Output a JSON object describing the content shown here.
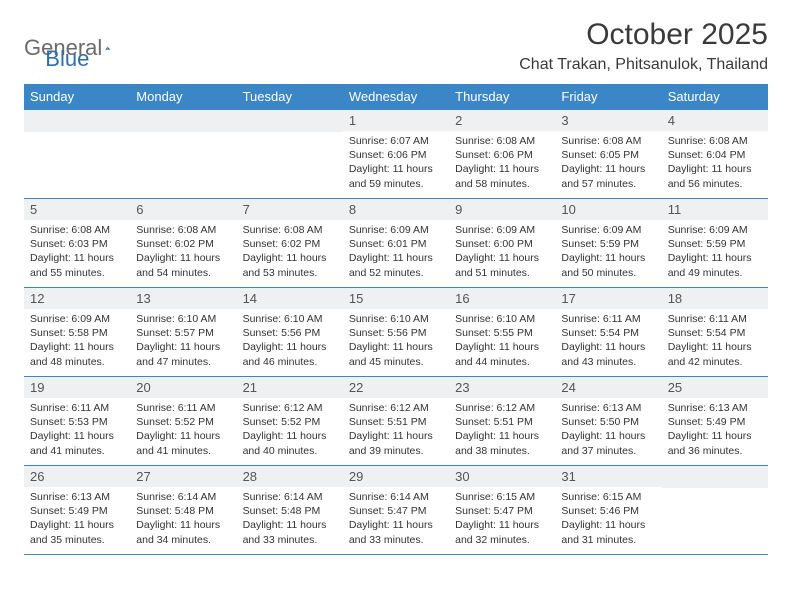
{
  "logo": {
    "general": "General",
    "blue": "Blue"
  },
  "title": "October 2025",
  "location": "Chat Trakan, Phitsanulok, Thailand",
  "colors": {
    "header_bg": "#3b86c7",
    "header_text": "#ffffff",
    "daynum_bg": "#eef0f2",
    "border": "#3b86c7",
    "logo_gray": "#6b6b6b",
    "logo_blue": "#2f6fa8"
  },
  "weekdays": [
    "Sunday",
    "Monday",
    "Tuesday",
    "Wednesday",
    "Thursday",
    "Friday",
    "Saturday"
  ],
  "weeks": [
    [
      {
        "n": "",
        "sr": "",
        "ss": "",
        "dl": ""
      },
      {
        "n": "",
        "sr": "",
        "ss": "",
        "dl": ""
      },
      {
        "n": "",
        "sr": "",
        "ss": "",
        "dl": ""
      },
      {
        "n": "1",
        "sr": "Sunrise: 6:07 AM",
        "ss": "Sunset: 6:06 PM",
        "dl": "Daylight: 11 hours and 59 minutes."
      },
      {
        "n": "2",
        "sr": "Sunrise: 6:08 AM",
        "ss": "Sunset: 6:06 PM",
        "dl": "Daylight: 11 hours and 58 minutes."
      },
      {
        "n": "3",
        "sr": "Sunrise: 6:08 AM",
        "ss": "Sunset: 6:05 PM",
        "dl": "Daylight: 11 hours and 57 minutes."
      },
      {
        "n": "4",
        "sr": "Sunrise: 6:08 AM",
        "ss": "Sunset: 6:04 PM",
        "dl": "Daylight: 11 hours and 56 minutes."
      }
    ],
    [
      {
        "n": "5",
        "sr": "Sunrise: 6:08 AM",
        "ss": "Sunset: 6:03 PM",
        "dl": "Daylight: 11 hours and 55 minutes."
      },
      {
        "n": "6",
        "sr": "Sunrise: 6:08 AM",
        "ss": "Sunset: 6:02 PM",
        "dl": "Daylight: 11 hours and 54 minutes."
      },
      {
        "n": "7",
        "sr": "Sunrise: 6:08 AM",
        "ss": "Sunset: 6:02 PM",
        "dl": "Daylight: 11 hours and 53 minutes."
      },
      {
        "n": "8",
        "sr": "Sunrise: 6:09 AM",
        "ss": "Sunset: 6:01 PM",
        "dl": "Daylight: 11 hours and 52 minutes."
      },
      {
        "n": "9",
        "sr": "Sunrise: 6:09 AM",
        "ss": "Sunset: 6:00 PM",
        "dl": "Daylight: 11 hours and 51 minutes."
      },
      {
        "n": "10",
        "sr": "Sunrise: 6:09 AM",
        "ss": "Sunset: 5:59 PM",
        "dl": "Daylight: 11 hours and 50 minutes."
      },
      {
        "n": "11",
        "sr": "Sunrise: 6:09 AM",
        "ss": "Sunset: 5:59 PM",
        "dl": "Daylight: 11 hours and 49 minutes."
      }
    ],
    [
      {
        "n": "12",
        "sr": "Sunrise: 6:09 AM",
        "ss": "Sunset: 5:58 PM",
        "dl": "Daylight: 11 hours and 48 minutes."
      },
      {
        "n": "13",
        "sr": "Sunrise: 6:10 AM",
        "ss": "Sunset: 5:57 PM",
        "dl": "Daylight: 11 hours and 47 minutes."
      },
      {
        "n": "14",
        "sr": "Sunrise: 6:10 AM",
        "ss": "Sunset: 5:56 PM",
        "dl": "Daylight: 11 hours and 46 minutes."
      },
      {
        "n": "15",
        "sr": "Sunrise: 6:10 AM",
        "ss": "Sunset: 5:56 PM",
        "dl": "Daylight: 11 hours and 45 minutes."
      },
      {
        "n": "16",
        "sr": "Sunrise: 6:10 AM",
        "ss": "Sunset: 5:55 PM",
        "dl": "Daylight: 11 hours and 44 minutes."
      },
      {
        "n": "17",
        "sr": "Sunrise: 6:11 AM",
        "ss": "Sunset: 5:54 PM",
        "dl": "Daylight: 11 hours and 43 minutes."
      },
      {
        "n": "18",
        "sr": "Sunrise: 6:11 AM",
        "ss": "Sunset: 5:54 PM",
        "dl": "Daylight: 11 hours and 42 minutes."
      }
    ],
    [
      {
        "n": "19",
        "sr": "Sunrise: 6:11 AM",
        "ss": "Sunset: 5:53 PM",
        "dl": "Daylight: 11 hours and 41 minutes."
      },
      {
        "n": "20",
        "sr": "Sunrise: 6:11 AM",
        "ss": "Sunset: 5:52 PM",
        "dl": "Daylight: 11 hours and 41 minutes."
      },
      {
        "n": "21",
        "sr": "Sunrise: 6:12 AM",
        "ss": "Sunset: 5:52 PM",
        "dl": "Daylight: 11 hours and 40 minutes."
      },
      {
        "n": "22",
        "sr": "Sunrise: 6:12 AM",
        "ss": "Sunset: 5:51 PM",
        "dl": "Daylight: 11 hours and 39 minutes."
      },
      {
        "n": "23",
        "sr": "Sunrise: 6:12 AM",
        "ss": "Sunset: 5:51 PM",
        "dl": "Daylight: 11 hours and 38 minutes."
      },
      {
        "n": "24",
        "sr": "Sunrise: 6:13 AM",
        "ss": "Sunset: 5:50 PM",
        "dl": "Daylight: 11 hours and 37 minutes."
      },
      {
        "n": "25",
        "sr": "Sunrise: 6:13 AM",
        "ss": "Sunset: 5:49 PM",
        "dl": "Daylight: 11 hours and 36 minutes."
      }
    ],
    [
      {
        "n": "26",
        "sr": "Sunrise: 6:13 AM",
        "ss": "Sunset: 5:49 PM",
        "dl": "Daylight: 11 hours and 35 minutes."
      },
      {
        "n": "27",
        "sr": "Sunrise: 6:14 AM",
        "ss": "Sunset: 5:48 PM",
        "dl": "Daylight: 11 hours and 34 minutes."
      },
      {
        "n": "28",
        "sr": "Sunrise: 6:14 AM",
        "ss": "Sunset: 5:48 PM",
        "dl": "Daylight: 11 hours and 33 minutes."
      },
      {
        "n": "29",
        "sr": "Sunrise: 6:14 AM",
        "ss": "Sunset: 5:47 PM",
        "dl": "Daylight: 11 hours and 33 minutes."
      },
      {
        "n": "30",
        "sr": "Sunrise: 6:15 AM",
        "ss": "Sunset: 5:47 PM",
        "dl": "Daylight: 11 hours and 32 minutes."
      },
      {
        "n": "31",
        "sr": "Sunrise: 6:15 AM",
        "ss": "Sunset: 5:46 PM",
        "dl": "Daylight: 11 hours and 31 minutes."
      },
      {
        "n": "",
        "sr": "",
        "ss": "",
        "dl": ""
      }
    ]
  ]
}
